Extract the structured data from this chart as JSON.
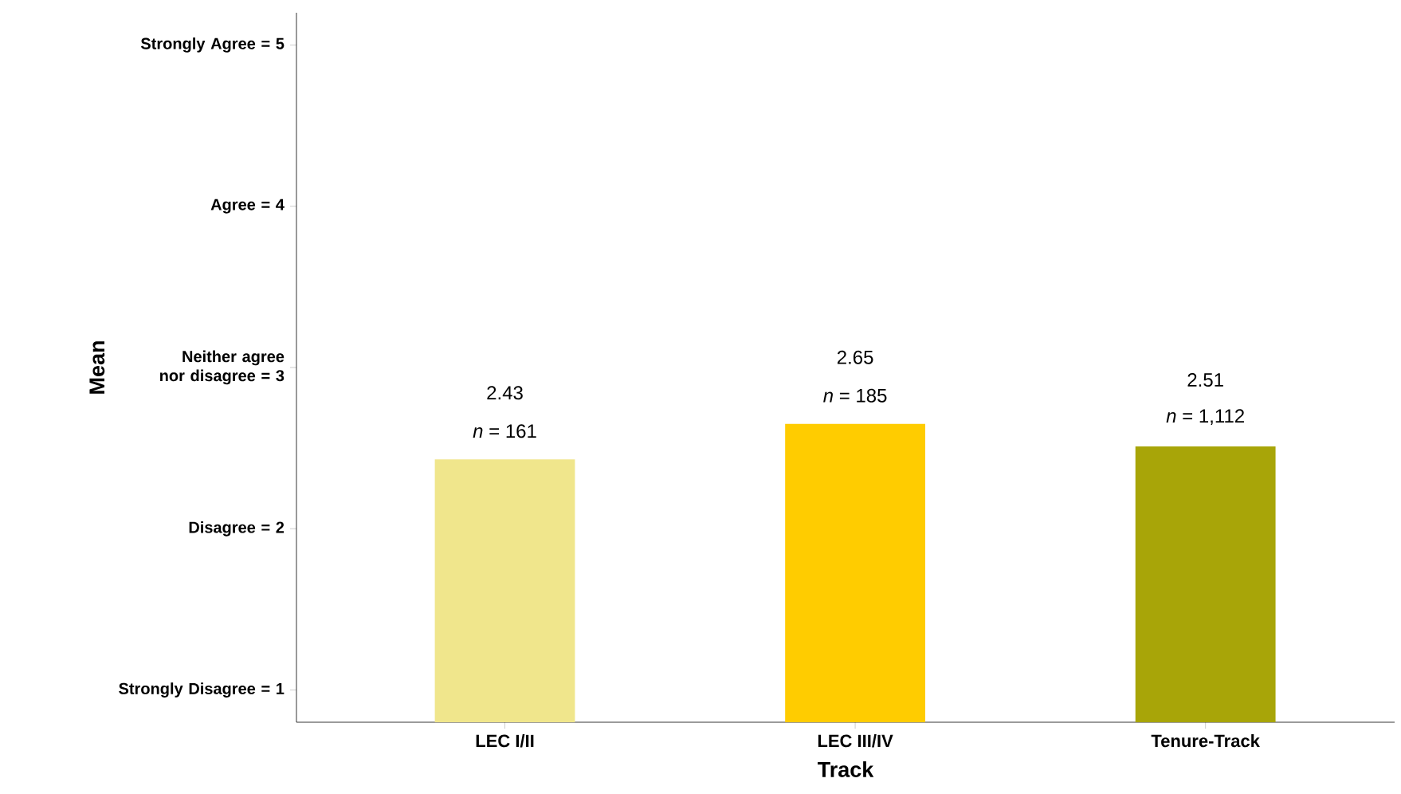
{
  "chart_data": {
    "type": "bar",
    "xlabel": "Track",
    "ylabel": "Mean",
    "categories": [
      "LEC I/II",
      "LEC III/IV",
      "Tenure-Track"
    ],
    "values": [
      2.43,
      2.65,
      2.51
    ],
    "colors": [
      "#f0e68c",
      "#ffcc00",
      "#a8a508"
    ],
    "ylim": [
      0.8,
      5.2
    ],
    "yticks": [
      {
        "value": 1,
        "label": "Strongly Disagree = 1"
      },
      {
        "value": 2,
        "label": "Disagree = 2"
      },
      {
        "value": 3,
        "label": "Neither agree nor disagree = 3"
      },
      {
        "value": 4,
        "label": "Agree = 4"
      },
      {
        "value": 5,
        "label": "Strongly Agree = 5"
      }
    ],
    "data_labels": true,
    "annotations": [
      "*n* = 161",
      "*n* = 185",
      "*n* = 1,112"
    ]
  }
}
